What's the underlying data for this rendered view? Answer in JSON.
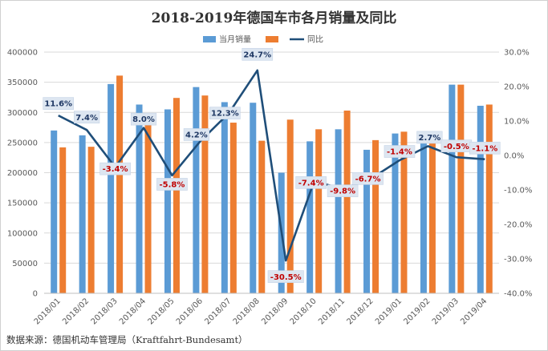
{
  "chart_data": {
    "type": "bar+line",
    "title": "2018-2019年德国车市各月销量及同比",
    "source": "数据来源：德国机动车管理局（Kraftfahrt-Bundesamt）",
    "categories": [
      "2018/01",
      "2018/02",
      "2018/03",
      "2018/04",
      "2018/05",
      "2018/06",
      "2018/07",
      "2018/08",
      "2018/09",
      "2018/10",
      "2018/11",
      "2018/12",
      "2019/01",
      "2019/02",
      "2019/03",
      "2019/04"
    ],
    "series": [
      {
        "name": "当月销量",
        "type": "bar",
        "axis": "left",
        "color": "#5B9BD5",
        "values": [
          270000,
          262000,
          347000,
          313000,
          305000,
          342000,
          317000,
          316000,
          200000,
          252000,
          272000,
          238000,
          265000,
          262000,
          346000,
          311000
        ]
      },
      {
        "name": "",
        "type": "bar",
        "axis": "left",
        "color": "#ED7D31",
        "values": [
          242000,
          243000,
          361000,
          290000,
          324000,
          328000,
          283000,
          253000,
          288000,
          272000,
          303000,
          254000,
          268000,
          255000,
          346000,
          313000
        ]
      },
      {
        "name": "同比",
        "type": "line",
        "axis": "right",
        "color": "#1F4E79",
        "values": [
          11.6,
          7.4,
          -3.4,
          8.0,
          -5.8,
          4.2,
          12.3,
          24.7,
          -30.5,
          -7.4,
          -9.8,
          -6.7,
          -1.4,
          2.7,
          -0.5,
          -1.1
        ],
        "labels": [
          "11.6%",
          "7.4%",
          "-3.4%",
          "8.0%",
          "-5.8%",
          "4.2%",
          "12.3%",
          "24.7%",
          "-30.5%",
          "-7.4%",
          "-9.8%",
          "-6.7%",
          "-1.4%",
          "2.7%",
          "-0.5%",
          "-1.1%"
        ]
      }
    ],
    "y_left": {
      "min": 0,
      "max": 400000,
      "step": 50000,
      "ticks": [
        "0",
        "50000",
        "100000",
        "150000",
        "200000",
        "250000",
        "300000",
        "350000",
        "400000"
      ]
    },
    "y_right": {
      "min": -40,
      "max": 30,
      "step": 10,
      "ticks": [
        "-40.0%",
        "-30.0%",
        "-20.0%",
        "-10.0%",
        "0.0%",
        "10.0%",
        "20.0%",
        "30.0%"
      ]
    },
    "grid": true,
    "legend": "top-center",
    "label_colors": {
      "positive": "#1F3864",
      "negative": "#C00000"
    }
  }
}
